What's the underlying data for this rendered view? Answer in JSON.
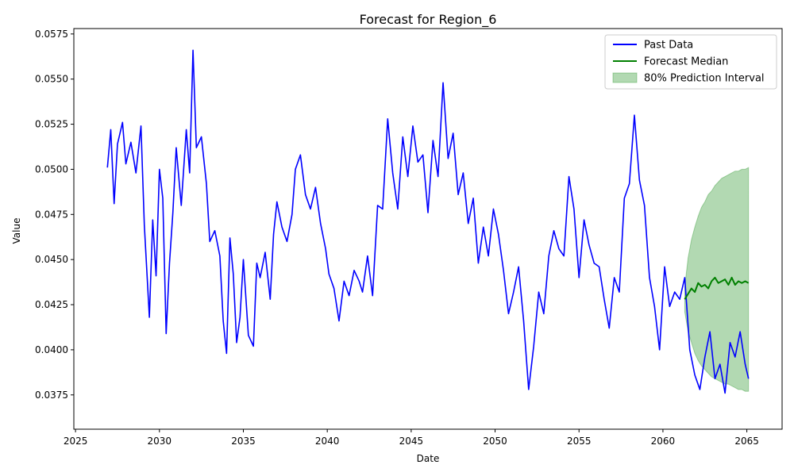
{
  "chart_data": {
    "type": "line",
    "title": "Forecast for Region_6",
    "xlabel": "Date",
    "ylabel": "Value",
    "xlim": [
      2024.9,
      2067.1
    ],
    "ylim": [
      0.0356,
      0.0578
    ],
    "x_ticks": [
      2025,
      2030,
      2035,
      2040,
      2045,
      2050,
      2055,
      2060,
      2065
    ],
    "y_ticks": [
      0.0375,
      0.04,
      0.0425,
      0.045,
      0.0475,
      0.05,
      0.0525,
      0.055,
      0.0575
    ],
    "y_tick_labels": [
      "0.0375",
      "0.0400",
      "0.0425",
      "0.0450",
      "0.0475",
      "0.0500",
      "0.0525",
      "0.0550",
      "0.0575"
    ],
    "legend_position": "top-right",
    "grid": false,
    "series": [
      {
        "name": "Past Data",
        "kind": "line",
        "color": "#0000ff",
        "x": [
          2026.9,
          2027.1,
          2027.3,
          2027.5,
          2027.8,
          2028.0,
          2028.3,
          2028.6,
          2028.9,
          2029.1,
          2029.4,
          2029.6,
          2029.8,
          2030.0,
          2030.2,
          2030.4,
          2030.6,
          2030.8,
          2031.0,
          2031.3,
          2031.6,
          2031.8,
          2032.0,
          2032.2,
          2032.5,
          2032.8,
          2033.0,
          2033.3,
          2033.6,
          2033.8,
          2034.0,
          2034.2,
          2034.4,
          2034.6,
          2034.8,
          2035.0,
          2035.3,
          2035.6,
          2035.8,
          2036.0,
          2036.3,
          2036.6,
          2036.8,
          2037.0,
          2037.3,
          2037.6,
          2037.9,
          2038.1,
          2038.4,
          2038.7,
          2039.0,
          2039.3,
          2039.6,
          2039.9,
          2040.1,
          2040.4,
          2040.7,
          2041.0,
          2041.3,
          2041.6,
          2041.9,
          2042.1,
          2042.4,
          2042.7,
          2043.0,
          2043.3,
          2043.6,
          2043.9,
          2044.2,
          2044.5,
          2044.8,
          2045.1,
          2045.4,
          2045.7,
          2046.0,
          2046.3,
          2046.6,
          2046.9,
          2047.2,
          2047.5,
          2047.8,
          2048.1,
          2048.4,
          2048.7,
          2049.0,
          2049.3,
          2049.6,
          2049.9,
          2050.2,
          2050.5,
          2050.8,
          2051.1,
          2051.4,
          2051.7,
          2052.0,
          2052.3,
          2052.6,
          2052.9,
          2053.2,
          2053.5,
          2053.8,
          2054.1,
          2054.4,
          2054.7,
          2055.0,
          2055.3,
          2055.6,
          2055.9,
          2056.2,
          2056.5,
          2056.8,
          2057.1,
          2057.4,
          2057.7,
          2058.0,
          2058.3,
          2058.6,
          2058.9,
          2059.2,
          2059.5,
          2059.8,
          2060.1,
          2060.4,
          2060.7,
          2061.0,
          2061.3,
          2061.6,
          2061.9,
          2062.2,
          2062.5,
          2062.8,
          2063.1,
          2063.4,
          2063.7,
          2064.0,
          2064.3,
          2064.6,
          2064.9,
          2065.1
        ],
        "y": [
          0.0501,
          0.0522,
          0.0481,
          0.0514,
          0.0526,
          0.0503,
          0.0515,
          0.0498,
          0.0524,
          0.0469,
          0.0418,
          0.0472,
          0.0441,
          0.05,
          0.0484,
          0.0409,
          0.0448,
          0.0476,
          0.0512,
          0.048,
          0.0522,
          0.0498,
          0.0566,
          0.0512,
          0.0518,
          0.0492,
          0.046,
          0.0466,
          0.0452,
          0.0416,
          0.0398,
          0.0462,
          0.0442,
          0.0404,
          0.0418,
          0.045,
          0.0408,
          0.0402,
          0.0448,
          0.044,
          0.0454,
          0.0428,
          0.0464,
          0.0482,
          0.0468,
          0.046,
          0.0475,
          0.05,
          0.0508,
          0.0486,
          0.0478,
          0.049,
          0.047,
          0.0456,
          0.0442,
          0.0434,
          0.0416,
          0.0438,
          0.043,
          0.0444,
          0.0438,
          0.0432,
          0.0452,
          0.043,
          0.048,
          0.0478,
          0.0528,
          0.0498,
          0.0478,
          0.0518,
          0.0496,
          0.0524,
          0.0504,
          0.0508,
          0.0476,
          0.0516,
          0.0496,
          0.0548,
          0.0506,
          0.052,
          0.0486,
          0.0498,
          0.047,
          0.0484,
          0.0448,
          0.0468,
          0.0452,
          0.0478,
          0.0464,
          0.0444,
          0.042,
          0.0432,
          0.0446,
          0.0416,
          0.0378,
          0.0402,
          0.0432,
          0.042,
          0.0452,
          0.0466,
          0.0456,
          0.0452,
          0.0496,
          0.0478,
          0.044,
          0.0472,
          0.0458,
          0.0448,
          0.0446,
          0.0428,
          0.0412,
          0.044,
          0.0432,
          0.0484,
          0.0492,
          0.053,
          0.0494,
          0.048,
          0.044,
          0.0424,
          0.04,
          0.0446,
          0.0424,
          0.0432,
          0.0428,
          0.044,
          0.04,
          0.0386,
          0.0378,
          0.0396,
          0.041,
          0.0384,
          0.0392,
          0.0376,
          0.0404,
          0.0396,
          0.041,
          0.0392,
          0.0384
        ]
      },
      {
        "name": "Forecast Median",
        "kind": "line",
        "color": "#008000",
        "x": [
          2061.3,
          2061.5,
          2061.7,
          2061.9,
          2062.1,
          2062.3,
          2062.5,
          2062.7,
          2062.9,
          2063.1,
          2063.3,
          2063.5,
          2063.7,
          2063.9,
          2064.1,
          2064.3,
          2064.5,
          2064.7,
          2064.9,
          2065.1
        ],
        "y": [
          0.0428,
          0.0431,
          0.0434,
          0.0432,
          0.0437,
          0.0435,
          0.0436,
          0.0434,
          0.0438,
          0.044,
          0.0437,
          0.0438,
          0.0439,
          0.0436,
          0.044,
          0.0436,
          0.0438,
          0.0437,
          0.0438,
          0.0437
        ]
      },
      {
        "name": "80% Prediction Interval",
        "kind": "band",
        "color": "#008000",
        "fill_opacity": 0.3,
        "x": [
          2061.3,
          2061.5,
          2061.7,
          2061.9,
          2062.1,
          2062.3,
          2062.5,
          2062.7,
          2062.9,
          2063.1,
          2063.3,
          2063.5,
          2063.7,
          2063.9,
          2064.1,
          2064.3,
          2064.5,
          2064.7,
          2064.9,
          2065.1
        ],
        "lower": [
          0.0421,
          0.041,
          0.0404,
          0.0398,
          0.0394,
          0.0391,
          0.0389,
          0.0387,
          0.0385,
          0.0384,
          0.0383,
          0.0382,
          0.0381,
          0.0381,
          0.038,
          0.0379,
          0.0378,
          0.0378,
          0.0377,
          0.0377
        ],
        "upper": [
          0.0435,
          0.0451,
          0.0461,
          0.0468,
          0.0474,
          0.0479,
          0.0482,
          0.0486,
          0.0488,
          0.0491,
          0.0493,
          0.0495,
          0.0496,
          0.0497,
          0.0498,
          0.0499,
          0.0499,
          0.05,
          0.05,
          0.0501
        ]
      }
    ]
  }
}
